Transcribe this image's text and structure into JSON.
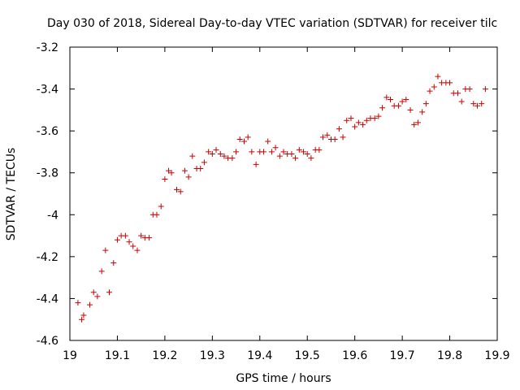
{
  "chart_data": {
    "type": "scatter",
    "title": "Day 030 of 2018, Sidereal Day-to-day VTEC variation (SDTVAR) for receiver tilc",
    "xlabel": "GPS time / hours",
    "ylabel": "SDTVAR / TECUs",
    "xlim": [
      19.0,
      19.9
    ],
    "ylim": [
      -4.6,
      -3.2
    ],
    "x_ticks": [
      19.0,
      19.1,
      19.2,
      19.3,
      19.4,
      19.5,
      19.6,
      19.7,
      19.8,
      19.9
    ],
    "x_tick_labels": [
      "19",
      "19.1",
      "19.2",
      "19.3",
      "19.4",
      "19.5",
      "19.6",
      "19.7",
      "19.8",
      "19.9"
    ],
    "y_ticks": [
      -3.2,
      -3.4,
      -3.6,
      -3.8,
      -4.0,
      -4.2,
      -4.4,
      -4.6
    ],
    "y_tick_labels": [
      "-3.2",
      "-3.4",
      "-3.6",
      "-3.8",
      "-4",
      "-4.2",
      "-4.4",
      "-4.6"
    ],
    "grid": false,
    "legend": "none",
    "marker_color": "#cc0000",
    "series": [
      {
        "name": "SDTVAR",
        "x": [
          19.017,
          19.025,
          19.029,
          19.042,
          19.05,
          19.058,
          19.067,
          19.075,
          19.083,
          19.092,
          19.1,
          19.108,
          19.117,
          19.125,
          19.133,
          19.142,
          19.15,
          19.158,
          19.167,
          19.175,
          19.183,
          19.192,
          19.2,
          19.208,
          19.214,
          19.225,
          19.233,
          19.242,
          19.25,
          19.258,
          19.267,
          19.275,
          19.283,
          19.292,
          19.3,
          19.308,
          19.317,
          19.325,
          19.333,
          19.342,
          19.35,
          19.358,
          19.367,
          19.375,
          19.383,
          19.392,
          19.4,
          19.408,
          19.417,
          19.425,
          19.433,
          19.442,
          19.45,
          19.458,
          19.467,
          19.475,
          19.483,
          19.492,
          19.5,
          19.508,
          19.517,
          19.525,
          19.533,
          19.542,
          19.55,
          19.558,
          19.567,
          19.575,
          19.583,
          19.592,
          19.6,
          19.608,
          19.617,
          19.625,
          19.633,
          19.642,
          19.65,
          19.658,
          19.667,
          19.675,
          19.683,
          19.692,
          19.7,
          19.708,
          19.717,
          19.725,
          19.733,
          19.742,
          19.75,
          19.758,
          19.767,
          19.775,
          19.783,
          19.792,
          19.8,
          19.808,
          19.817,
          19.825,
          19.833,
          19.842,
          19.85,
          19.858,
          19.867,
          19.875
        ],
        "y": [
          -4.42,
          -4.5,
          -4.48,
          -4.43,
          -4.37,
          -4.39,
          -4.27,
          -4.17,
          -4.37,
          -4.23,
          -4.12,
          -4.1,
          -4.1,
          -4.13,
          -4.15,
          -4.17,
          -4.1,
          -4.11,
          -4.11,
          -4.0,
          -4.0,
          -3.96,
          -3.83,
          -3.79,
          -3.8,
          -3.88,
          -3.89,
          -3.79,
          -3.82,
          -3.72,
          -3.78,
          -3.78,
          -3.75,
          -3.7,
          -3.71,
          -3.69,
          -3.71,
          -3.72,
          -3.73,
          -3.73,
          -3.7,
          -3.64,
          -3.65,
          -3.63,
          -3.7,
          -3.76,
          -3.7,
          -3.7,
          -3.65,
          -3.7,
          -3.68,
          -3.72,
          -3.7,
          -3.71,
          -3.71,
          -3.73,
          -3.69,
          -3.7,
          -3.71,
          -3.73,
          -3.69,
          -3.69,
          -3.63,
          -3.62,
          -3.64,
          -3.64,
          -3.59,
          -3.63,
          -3.55,
          -3.54,
          -3.58,
          -3.56,
          -3.57,
          -3.55,
          -3.54,
          -3.54,
          -3.53,
          -3.49,
          -3.44,
          -3.45,
          -3.48,
          -3.48,
          -3.46,
          -3.45,
          -3.5,
          -3.57,
          -3.56,
          -3.51,
          -3.47,
          -3.41,
          -3.39,
          -3.34,
          -3.37,
          -3.37,
          -3.37,
          -3.42,
          -3.42,
          -3.46,
          -3.4,
          -3.4,
          -3.47,
          -3.48,
          -3.47,
          -3.4
        ]
      }
    ]
  }
}
